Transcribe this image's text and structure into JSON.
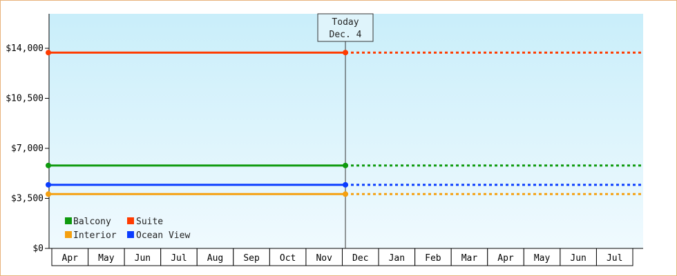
{
  "chart_data": {
    "type": "line",
    "title": "",
    "xlabel": "",
    "ylabel": "",
    "x": [
      "Apr",
      "May",
      "Jun",
      "Jul",
      "Aug",
      "Sep",
      "Oct",
      "Nov",
      "Dec",
      "Jan",
      "Feb",
      "Mar",
      "Apr",
      "May",
      "Jun",
      "Jul"
    ],
    "ylim": [
      0,
      17000
    ],
    "y_ticks": [
      {
        "value": 0,
        "label": "$0"
      },
      {
        "value": 3500,
        "label": "$3,500"
      },
      {
        "value": 7000,
        "label": "$7,000"
      },
      {
        "value": 10500,
        "label": "$10,500"
      },
      {
        "value": 14000,
        "label": "$14,000"
      }
    ],
    "grid": false,
    "today_marker": {
      "line1": "Today",
      "line2": "Dec. 4",
      "x": "Dec 4"
    },
    "legend_position": "bottom-left",
    "series": [
      {
        "name": "Suite",
        "color": "#ff3b00",
        "value": 13700,
        "style": "solid until today, dotted projection after"
      },
      {
        "name": "Balcony",
        "color": "#0e9a0e",
        "value": 5800,
        "style": "solid until today, dotted projection after"
      },
      {
        "name": "Ocean View",
        "color": "#0a3cff",
        "value": 4450,
        "style": "solid until today, dotted projection after"
      },
      {
        "name": "Interior",
        "color": "#f5a00f",
        "value": 3800,
        "style": "solid until today, dotted projection after"
      }
    ],
    "legend": [
      {
        "name": "Balcony",
        "color": "#0e9a0e"
      },
      {
        "name": "Suite",
        "color": "#ff3b00"
      },
      {
        "name": "Interior",
        "color": "#f5a00f"
      },
      {
        "name": "Ocean View",
        "color": "#0a3cff"
      }
    ],
    "colors": {
      "plot_top": "#c9eefa",
      "plot_bottom": "#f0fafe",
      "frame_border": "#e8b27a",
      "axis": "#000000"
    }
  }
}
